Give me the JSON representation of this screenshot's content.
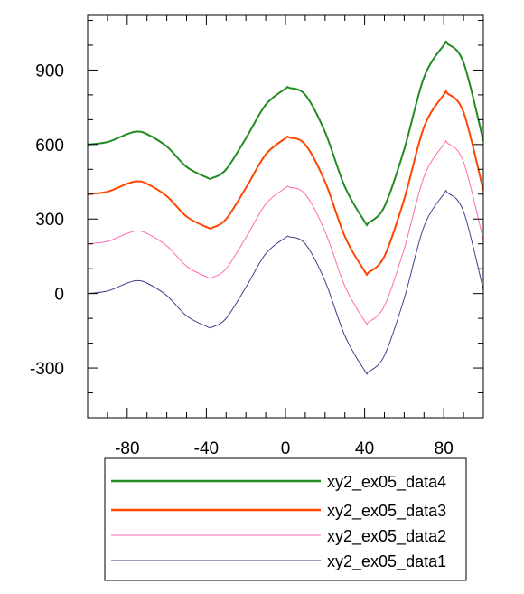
{
  "chart_data": {
    "type": "line",
    "xlim": [
      -100,
      100
    ],
    "ylim": [
      -500,
      1120
    ],
    "x_ticks": [
      -80,
      -40,
      0,
      40,
      80
    ],
    "y_ticks": [
      -300,
      0,
      300,
      600,
      900
    ],
    "grid": false,
    "legend_position": "below",
    "series": [
      {
        "name": "xy2_ex05_data4",
        "color": "#228B22",
        "stroke": "thick",
        "x": [
          -100,
          -90,
          -80,
          -75,
          -70,
          -60,
          -50,
          -40,
          -37,
          -30,
          -20,
          -10,
          0,
          2,
          10,
          20,
          30,
          40,
          42,
          50,
          60,
          70,
          80,
          82,
          90,
          100
        ],
        "y": [
          600,
          610,
          642,
          652,
          642,
          592,
          510,
          468,
          465,
          500,
          625,
          760,
          825,
          828,
          800,
          650,
          430,
          290,
          285,
          350,
          580,
          870,
          1000,
          1005,
          930,
          615
        ]
      },
      {
        "name": "xy2_ex05_data3",
        "color": "#FF4500",
        "stroke": "thick",
        "x": [
          -100,
          -90,
          -80,
          -75,
          -70,
          -60,
          -50,
          -40,
          -37,
          -30,
          -20,
          -10,
          0,
          2,
          10,
          20,
          30,
          40,
          42,
          50,
          60,
          70,
          80,
          82,
          90,
          100
        ],
        "y": [
          400,
          410,
          442,
          452,
          442,
          392,
          310,
          268,
          265,
          300,
          425,
          560,
          625,
          628,
          600,
          450,
          230,
          90,
          85,
          150,
          380,
          670,
          800,
          805,
          730,
          415
        ]
      },
      {
        "name": "xy2_ex05_data2",
        "color": "#FF69B4",
        "stroke": "thin",
        "x": [
          -100,
          -90,
          -80,
          -75,
          -70,
          -60,
          -50,
          -40,
          -37,
          -30,
          -20,
          -10,
          0,
          2,
          10,
          20,
          30,
          40,
          42,
          50,
          60,
          70,
          80,
          82,
          90,
          100
        ],
        "y": [
          200,
          210,
          242,
          252,
          242,
          192,
          110,
          68,
          65,
          100,
          225,
          360,
          425,
          428,
          400,
          250,
          30,
          -110,
          -115,
          -50,
          180,
          470,
          600,
          605,
          530,
          215
        ]
      },
      {
        "name": "xy2_ex05_data1",
        "color": "#483D8B",
        "stroke": "thin",
        "x": [
          -100,
          -90,
          -80,
          -75,
          -70,
          -60,
          -50,
          -40,
          -37,
          -30,
          -20,
          -10,
          0,
          2,
          10,
          20,
          30,
          40,
          42,
          50,
          60,
          70,
          80,
          82,
          90,
          100
        ],
        "y": [
          0,
          10,
          42,
          52,
          42,
          -8,
          -90,
          -132,
          -135,
          -100,
          25,
          160,
          225,
          228,
          200,
          50,
          -170,
          -310,
          -315,
          -250,
          -20,
          270,
          400,
          405,
          330,
          15
        ]
      }
    ]
  }
}
